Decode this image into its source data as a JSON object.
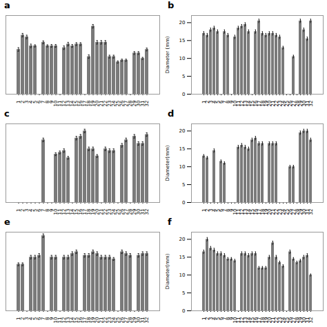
{
  "chart_data": [
    {
      "type": "bar",
      "title": "a",
      "categories": [
        "1",
        "2",
        "3",
        "4",
        "5",
        "6",
        "7",
        "8",
        "9",
        "10",
        "11",
        "12",
        "13",
        "14",
        "15",
        "16",
        "17",
        "18",
        "19",
        "20",
        "21",
        "22",
        "23",
        "24",
        "25",
        "26",
        "27",
        "28",
        "29",
        "30",
        "31",
        "32"
      ],
      "values": [
        12.5,
        16.5,
        16.0,
        13.5,
        13.5,
        0,
        14.5,
        13.5,
        13.5,
        13.5,
        0,
        13.0,
        14.0,
        13.5,
        14.0,
        14.0,
        0,
        10.5,
        19.0,
        14.5,
        14.5,
        14.5,
        10.5,
        10.5,
        9.0,
        9.5,
        9.5,
        0,
        11.5,
        11.5,
        10.0,
        12.5
      ],
      "errors": [
        0.5,
        0.5,
        0.5,
        0.5,
        0.3,
        0,
        0.4,
        0.3,
        0.4,
        0.4,
        0,
        0.5,
        0.5,
        0.4,
        0.4,
        0.4,
        0,
        0.5,
        0.5,
        0.5,
        0.5,
        0.5,
        0.4,
        0.4,
        0.3,
        0.3,
        0.3,
        0,
        0.4,
        0.4,
        0.3,
        0.4
      ],
      "color": "#7a7a7a",
      "ylim": [
        0,
        22
      ],
      "tick_labels": "x"
    },
    {
      "type": "bar",
      "title": "b",
      "categories": [
        "1",
        "2",
        "3",
        "4",
        "5",
        "6",
        "7",
        "8",
        "9",
        "10",
        "11",
        "12",
        "13",
        "14",
        "15",
        "16",
        "17",
        "18",
        "19",
        "20",
        "21",
        "22",
        "23",
        "24",
        "25",
        "26",
        "27",
        "28",
        "29",
        "30",
        "31",
        "32"
      ],
      "values": [
        17.0,
        16.5,
        18.0,
        18.5,
        17.5,
        0,
        17.5,
        16.5,
        0,
        16.0,
        18.5,
        19.0,
        19.5,
        17.5,
        0,
        17.5,
        20.5,
        17.0,
        16.5,
        17.0,
        17.0,
        16.5,
        16.0,
        13.0,
        0,
        0,
        10.5,
        0,
        20.5,
        18.0,
        15.5,
        20.5
      ],
      "errors": [
        0.5,
        0.5,
        0.5,
        0.5,
        0.5,
        0,
        0.5,
        0.5,
        0,
        0.5,
        0.5,
        0.5,
        0.5,
        0.5,
        0,
        0.5,
        0.5,
        0.5,
        0.5,
        0.5,
        0.5,
        0.5,
        0.5,
        0.4,
        0,
        0,
        0.4,
        0,
        0.5,
        0.5,
        0.5,
        0.5
      ],
      "color": "#7a7a7a",
      "y_label": "Diameter (mm)",
      "ylim": [
        0,
        22
      ],
      "yticks": [
        0,
        5,
        10,
        15,
        20
      ]
    },
    {
      "type": "bar",
      "title": "c",
      "categories": [
        "1",
        "2",
        "3",
        "4",
        "5",
        "6",
        "7",
        "8",
        "9",
        "10",
        "11",
        "12",
        "13",
        "14",
        "15",
        "16",
        "17",
        "18",
        "19",
        "20",
        "21",
        "22",
        "23",
        "24",
        "25",
        "26",
        "27",
        "28",
        "29",
        "30",
        "31",
        "32"
      ],
      "values": [
        0,
        0,
        0,
        0,
        0,
        0,
        17.5,
        0,
        0,
        13.5,
        14.0,
        14.5,
        12.5,
        0,
        18.0,
        18.5,
        20.0,
        15.0,
        15.0,
        13.0,
        0,
        15.0,
        14.5,
        14.5,
        0,
        16.0,
        17.5,
        0,
        18.5,
        16.5,
        16.5,
        19.0
      ],
      "errors": [
        0,
        0,
        0,
        0,
        0,
        0,
        0.5,
        0,
        0,
        0.4,
        0.4,
        0.5,
        0.4,
        0,
        0.5,
        0.5,
        0.5,
        0.5,
        0.5,
        0.4,
        0,
        0.5,
        0.5,
        0.5,
        0,
        0.5,
        0.5,
        0,
        0.5,
        0.5,
        0.5,
        0.5
      ],
      "color": "#7a7a7a",
      "ylim": [
        0,
        22
      ],
      "tick_labels": "x"
    },
    {
      "type": "bar",
      "title": "d",
      "categories": [
        "1",
        "2",
        "3",
        "4",
        "5",
        "6",
        "7",
        "8",
        "9",
        "10",
        "11",
        "12",
        "13",
        "14",
        "15",
        "16",
        "17",
        "18",
        "19",
        "20",
        "21",
        "22",
        "23",
        "24",
        "25",
        "26",
        "27",
        "28",
        "29",
        "30",
        "31",
        "32"
      ],
      "values": [
        13.0,
        12.5,
        0,
        14.5,
        0,
        11.5,
        11.0,
        0,
        0,
        0,
        15.5,
        16.0,
        15.5,
        15.0,
        17.5,
        18.0,
        16.5,
        16.5,
        0,
        16.5,
        16.5,
        16.5,
        0,
        0,
        0,
        10.0,
        10.0,
        0,
        19.5,
        20.0,
        20.0,
        17.5
      ],
      "errors": [
        0.4,
        0.4,
        0,
        0.5,
        0,
        0.4,
        0.4,
        0,
        0,
        0,
        0.5,
        0.5,
        0.5,
        0.5,
        0.5,
        0.5,
        0.5,
        0.5,
        0,
        0.5,
        0.5,
        0.5,
        0,
        0,
        0,
        0.4,
        0.4,
        0,
        0.5,
        0.5,
        0.5,
        0.5
      ],
      "color": "#7a7a7a",
      "y_label": "Diameter(mm)",
      "ylim": [
        0,
        22
      ],
      "yticks": [
        0,
        5,
        10,
        15,
        20
      ]
    },
    {
      "type": "bar",
      "title": "e",
      "categories": [
        "1",
        "2",
        "3",
        "4",
        "5",
        "6",
        "7",
        "8",
        "9",
        "10",
        "11",
        "12",
        "13",
        "14",
        "15",
        "16",
        "17",
        "18",
        "19",
        "20",
        "21",
        "22",
        "23",
        "24",
        "25",
        "26",
        "27",
        "28",
        "29",
        "30",
        "31",
        "32"
      ],
      "values": [
        13.0,
        13.0,
        0,
        15.0,
        15.0,
        15.5,
        21.0,
        0,
        15.0,
        15.0,
        0,
        15.0,
        15.0,
        16.0,
        16.5,
        0,
        15.5,
        15.5,
        16.5,
        16.0,
        15.0,
        15.0,
        15.0,
        14.5,
        0,
        16.5,
        16.0,
        15.5,
        0,
        15.5,
        16.0,
        16.0
      ],
      "errors": [
        0.4,
        0.4,
        0,
        0.5,
        0.5,
        0.5,
        0.5,
        0,
        0.5,
        0.5,
        0,
        0.5,
        0.5,
        0.5,
        0.5,
        0,
        0.5,
        0.5,
        0.5,
        0.5,
        0.5,
        0.5,
        0.5,
        0.4,
        0,
        0.5,
        0.5,
        0.5,
        0,
        0.5,
        0.5,
        0.5
      ],
      "color": "#7a7a7a",
      "ylim": [
        0,
        22
      ],
      "tick_labels": "x"
    },
    {
      "type": "bar",
      "title": "f",
      "categories": [
        "1",
        "2",
        "3",
        "4",
        "5",
        "6",
        "7",
        "8",
        "9",
        "10",
        "11",
        "12",
        "13",
        "14",
        "15",
        "16",
        "17",
        "18",
        "19",
        "20",
        "21",
        "22",
        "23",
        "24",
        "25",
        "26",
        "27",
        "28",
        "29",
        "30",
        "31",
        "32"
      ],
      "values": [
        16.5,
        20.0,
        17.5,
        17.0,
        16.0,
        16.0,
        15.5,
        14.5,
        14.5,
        14.0,
        0,
        16.0,
        16.0,
        15.5,
        16.0,
        16.0,
        12.0,
        12.0,
        12.0,
        15.0,
        19.0,
        15.0,
        13.5,
        12.5,
        0,
        16.5,
        14.5,
        13.5,
        14.0,
        15.0,
        15.5,
        10.0
      ],
      "errors": [
        0.5,
        0.5,
        0.5,
        0.5,
        0.5,
        0.5,
        0.5,
        0.4,
        0.4,
        0.4,
        0,
        0.5,
        0.5,
        0.5,
        0.5,
        0.5,
        0.4,
        0.4,
        0.4,
        0.5,
        0.5,
        0.5,
        0.4,
        0.4,
        0,
        0.5,
        0.4,
        0.4,
        0.4,
        0.5,
        0.5,
        0.3
      ],
      "color": "#7a7a7a",
      "y_label": "Diameter(mm)",
      "ylim": [
        0,
        22
      ],
      "yticks": [
        0,
        5,
        10,
        15,
        20
      ]
    }
  ]
}
